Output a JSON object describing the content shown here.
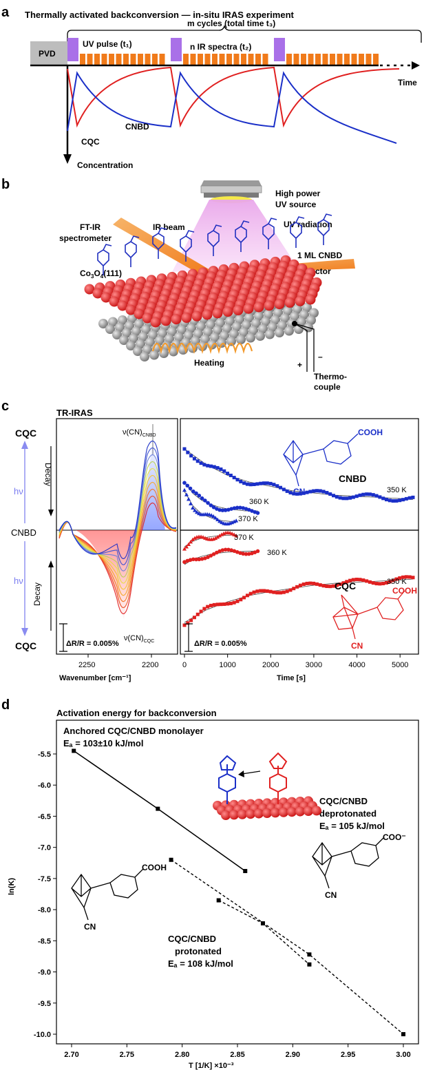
{
  "panel_a": {
    "letter": "a",
    "title": "Thermally activated backconversion — in-situ IRAS experiment",
    "cycles_label": "m cycles (total time t₃)",
    "pvd": "PVD",
    "uv_pulse": "UV pulse (t₁)",
    "ir_spectra": "n IR spectra (t₂)",
    "time": "Time",
    "cnbd": "CNBD",
    "cqc": "CQC",
    "concentration": "Concentration",
    "colors": {
      "uv": "#a970e8",
      "ir": "#f07a1a",
      "cnbd": "#1a2fc8",
      "cqc": "#e02020",
      "pvd": "#bdbdbd"
    }
  },
  "panel_b": {
    "letter": "b",
    "high_power": "High power",
    "uv_source": "UV source",
    "ftir1": "FT-IR",
    "ftir2": "spectrometer",
    "ir_beam": "IR beam",
    "uv_radiation": "UV radiation",
    "monolayer": "1 ML CNBD",
    "substrate": "Co₃O₄(111)",
    "ir_detector": "IR detector",
    "heating": "Heating",
    "plus": "+",
    "minus": "–",
    "thermo1": "Thermo-",
    "thermo2": "couple"
  },
  "panel_c": {
    "letter": "c",
    "title": "TR-IRAS",
    "cqc_top": "CQC",
    "cqc_bottom": "CQC",
    "cnbd_mid": "CNBD",
    "hv_top": "hν",
    "hv_bottom": "hν",
    "decay_top": "Decay",
    "decay_bottom": "Decay",
    "nu_cnbd": "ν(CN)",
    "nu_cnbd_sub": "CNBD",
    "nu_cqc": "ν(CN)",
    "nu_cqc_sub": "CQC",
    "scale_left": "ΔR/R = 0.005%",
    "scale_right": "ΔR/R = 0.005%",
    "wavenumber_ticks": [
      "2250",
      "2200"
    ],
    "wavenumber_label": "Wavenumber [cm⁻¹]",
    "time_ticks": [
      "0",
      "1000",
      "2000",
      "3000",
      "4000",
      "5000"
    ],
    "time_label": "Time [s]",
    "mol_cnbd": "CNBD",
    "cooh_top": "COOH",
    "cn_top": "CN",
    "mol_cqc": "CQC",
    "cooh_bottom": "COOH",
    "cn_bottom": "CN",
    "temps_top": [
      "350 K",
      "360 K",
      "370 K"
    ],
    "temps_bottom": [
      "370 K",
      "360 K",
      "350 K"
    ]
  },
  "panel_d": {
    "letter": "d",
    "title": "Activation energy for backconversion",
    "anchored": "Anchored CQC/CNBD monolayer",
    "anchored_ea": "Eₐ = 103±10 kJ/mol",
    "deprot1": "CQC/CNBD",
    "deprot2": "deprotonated",
    "deprot_ea": "Eₐ = 105 kJ/mol",
    "prot1": "CQC/CNBD",
    "prot2": "protonated",
    "prot_ea": "Eₐ = 108 kJ/mol",
    "cooh": "COOH",
    "coo": "COO⁻",
    "cn_left": "CN",
    "cn_right": "CN",
    "ylabel": "ln(K)",
    "xlabel": "T [1/K] ×10⁻³"
  },
  "chart_data": [
    {
      "type": "scatter",
      "x_range_s": [
        0,
        5300
      ],
      "series": [
        {
          "name": "CNBD 350 K",
          "time_s": [
            0,
            500,
            1000,
            1500,
            2000,
            2500,
            3000,
            3500,
            4000,
            4500,
            5000,
            5300
          ],
          "dR_pct": [
            0.0,
            0.0014,
            0.0024,
            0.003,
            0.0034,
            0.0038,
            0.004,
            0.0042,
            0.0043,
            0.0044,
            0.0045,
            0.0046
          ]
        },
        {
          "name": "CNBD 360 K",
          "time_s": [
            0,
            200,
            400,
            600,
            800,
            1000,
            1200,
            1400,
            1700
          ],
          "dR_pct": [
            0.0,
            0.0012,
            0.0019,
            0.0023,
            0.0026,
            0.0028,
            0.0029,
            0.003,
            0.003
          ]
        },
        {
          "name": "CNBD 370 K",
          "time_s": [
            0,
            200,
            400,
            600,
            800,
            1000,
            1200
          ],
          "dR_pct": [
            0.0,
            0.0016,
            0.0025,
            0.0029,
            0.0032,
            0.0033,
            0.0034
          ]
        },
        {
          "name": "CQC 370 K",
          "time_s": [
            0,
            200,
            400,
            600,
            800,
            1000,
            1200
          ],
          "dR_pct": [
            0.0,
            0.0016,
            0.0025,
            0.0029,
            0.0032,
            0.0033,
            0.0034
          ]
        },
        {
          "name": "CQC 360 K",
          "time_s": [
            0,
            200,
            400,
            600,
            800,
            1000,
            1200,
            1400,
            1700
          ],
          "dR_pct": [
            0.0,
            0.0013,
            0.002,
            0.0025,
            0.0028,
            0.003,
            0.0031,
            0.0032,
            0.0033
          ]
        },
        {
          "name": "CQC 350 K",
          "time_s": [
            0,
            500,
            1000,
            1500,
            2000,
            2500,
            3000,
            3500,
            4000,
            4500,
            5000,
            5300
          ],
          "dR_pct": [
            0.0,
            0.0012,
            0.002,
            0.0026,
            0.003,
            0.0033,
            0.0036,
            0.0038,
            0.0039,
            0.004,
            0.0041,
            0.0042
          ]
        }
      ]
    },
    {
      "type": "scatter",
      "xlim": [
        2.7,
        3.02
      ],
      "ylim": [
        -10.3,
        -5.2
      ],
      "x_ticks": [
        "2.70",
        "2.75",
        "2.80",
        "2.85",
        "2.90",
        "2.95",
        "3.00"
      ],
      "y_ticks": [
        "-5.5",
        "-6.0",
        "-6.5",
        "-7.0",
        "-7.5",
        "-8.0",
        "-8.5",
        "-9.0",
        "-9.5",
        "-10.0"
      ],
      "series": [
        {
          "name": "Anchored CQC/CNBD monolayer",
          "x": [
            2.702,
            2.778,
            2.857
          ],
          "y": [
            -5.45,
            -6.38,
            -7.38
          ]
        },
        {
          "name": "CQC/CNBD protonated",
          "x": [
            2.79,
            2.915,
            3.0
          ],
          "y": [
            -7.2,
            -8.72,
            -10.0
          ]
        },
        {
          "name": "CQC/CNBD deprotonated",
          "x": [
            2.833,
            2.873,
            2.915
          ],
          "y": [
            -7.85,
            -8.22,
            -8.88
          ]
        }
      ]
    }
  ]
}
